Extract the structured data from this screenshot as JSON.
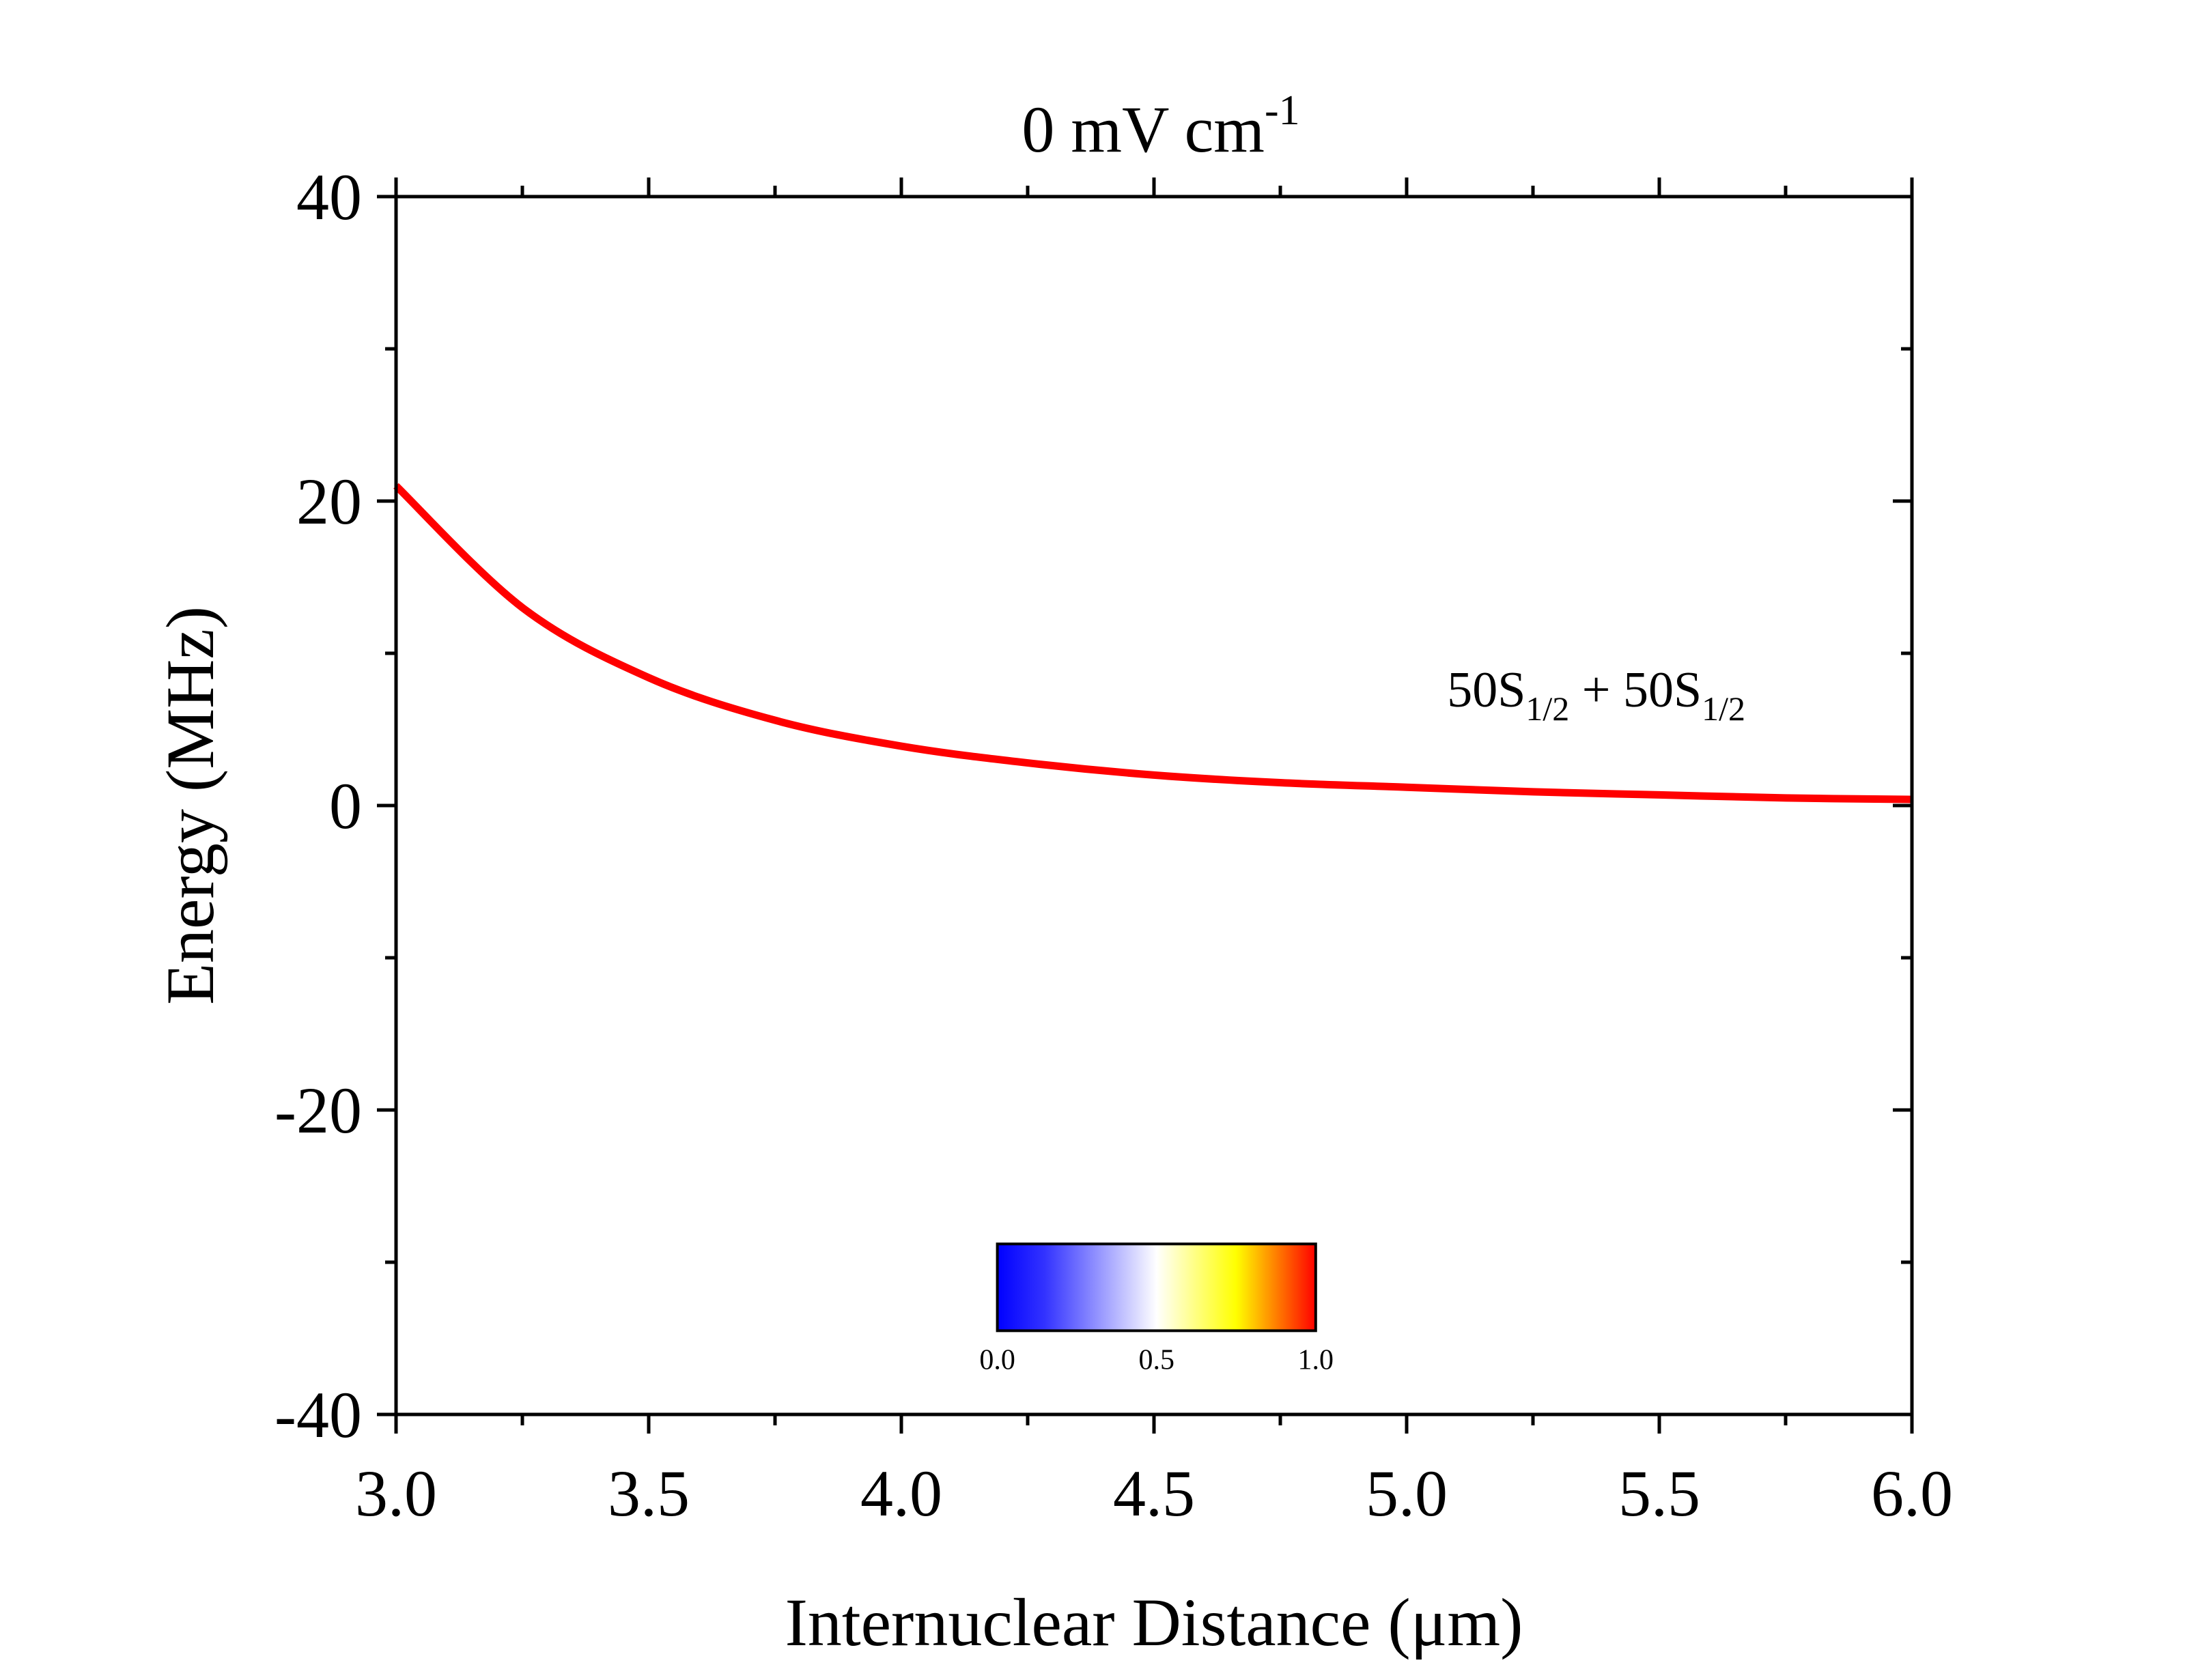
{
  "chart_data": {
    "type": "line",
    "title": "0 mV cm",
    "title_superscript": "-1",
    "xlabel": "Internuclear Distance (μm)",
    "ylabel": "Energy (MHz)",
    "xlim": [
      3.0,
      6.0
    ],
    "ylim": [
      -40,
      40
    ],
    "x_ticks": [
      3.0,
      3.5,
      4.0,
      4.5,
      5.0,
      5.5,
      6.0
    ],
    "x_tick_labels": [
      "3.0",
      "3.5",
      "4.0",
      "4.5",
      "5.0",
      "5.5",
      "6.0"
    ],
    "y_ticks": [
      -40,
      -20,
      0,
      20,
      40
    ],
    "y_tick_labels": [
      "-40",
      "-20",
      "0",
      "20",
      "40"
    ],
    "x_minor_step": 0.25,
    "y_minor_step": 10,
    "grid": false,
    "series": [
      {
        "name": "50S1/2 + 50S1/2",
        "color": "#ff0000",
        "x": [
          3.0,
          3.25,
          3.5,
          3.75,
          4.0,
          4.25,
          4.5,
          4.75,
          5.0,
          5.25,
          5.5,
          5.75,
          6.0
        ],
        "y": [
          21.0,
          13.0,
          8.4,
          5.6,
          3.9,
          2.8,
          2.0,
          1.5,
          1.2,
          0.9,
          0.7,
          0.5,
          0.4
        ]
      }
    ],
    "annotation": {
      "text": "50S",
      "sub1": "1/2",
      "mid": " + 50S",
      "sub2": "1/2",
      "x": 5.08,
      "y": 6.5
    },
    "colorbar": {
      "label_min": "0.0",
      "label_mid": "0.5",
      "label_max": "1.0",
      "stops": [
        {
          "offset": 0.0,
          "color": "#0000ff"
        },
        {
          "offset": 0.15,
          "color": "#3333ff"
        },
        {
          "offset": 0.5,
          "color": "#ffffff"
        },
        {
          "offset": 0.75,
          "color": "#ffff00"
        },
        {
          "offset": 0.9,
          "color": "#ff6600"
        },
        {
          "offset": 1.0,
          "color": "#ff0000"
        }
      ],
      "x_range": [
        4.19,
        4.82
      ],
      "y_range": [
        -28.8,
        -34.5
      ]
    }
  }
}
